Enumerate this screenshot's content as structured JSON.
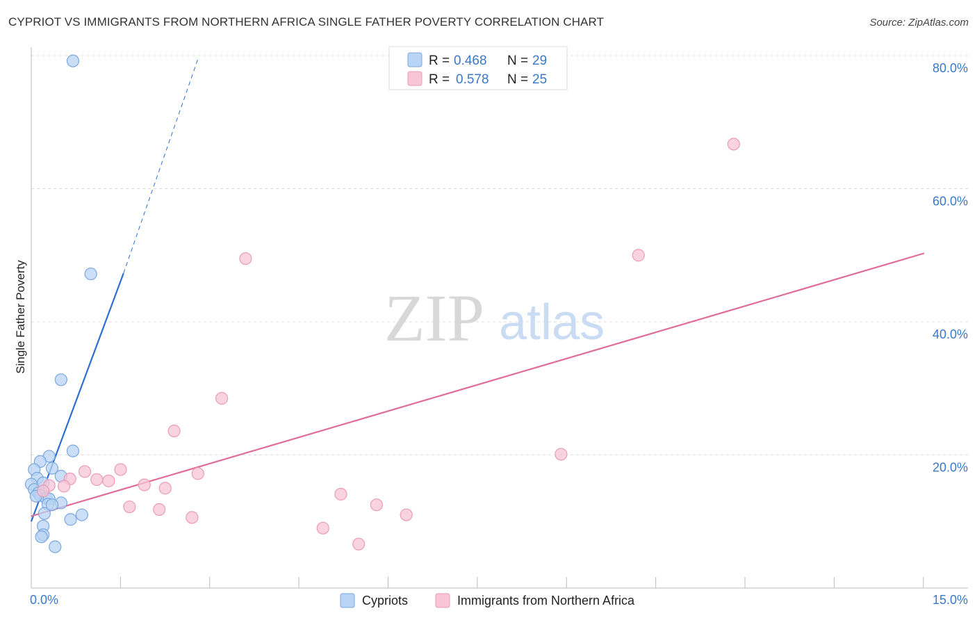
{
  "title": "CYPRIOT VS IMMIGRANTS FROM NORTHERN AFRICA SINGLE FATHER POVERTY CORRELATION CHART",
  "source": "Source: ZipAtlas.com",
  "watermark": {
    "zip": "ZIP",
    "atlas": "atlas"
  },
  "colors": {
    "blue": "#3a78c9",
    "blue_fill": "#b8d4f4",
    "blue_line": "#2d6fd0",
    "pink": "#e0709a",
    "pink_fill": "#f7c5d5",
    "pink_line": "#e06c99"
  },
  "legend": [
    {
      "r_label": "R =",
      "r_value": "0.468",
      "n_label": "N =",
      "n_value": "29"
    },
    {
      "r_label": "R =",
      "r_value": "0.578",
      "n_label": "N =",
      "n_value": "25"
    }
  ],
  "bottom_legend": [
    "Cypriots",
    "Immigrants from Northern Africa"
  ],
  "chart_data": {
    "type": "scatter",
    "title": "CYPRIOT VS IMMIGRANTS FROM NORTHERN AFRICA SINGLE FATHER POVERTY CORRELATION CHART",
    "xlabel": "",
    "ylabel": "Single Father Poverty",
    "xlim": [
      0,
      15
    ],
    "ylim": [
      0,
      82
    ],
    "x_tick_labels": [
      {
        "value": 0,
        "label": "0.0%"
      },
      {
        "value": 15,
        "label": "15.0%"
      }
    ],
    "y_tick_labels": [
      {
        "value": 20,
        "label": "20.0%"
      },
      {
        "value": 40,
        "label": "40.0%"
      },
      {
        "value": 60,
        "label": "60.0%"
      },
      {
        "value": 80,
        "label": "80.0%"
      }
    ],
    "series": [
      {
        "name": "Cypriots",
        "points": [
          [
            0.7,
            79.2
          ],
          [
            1.0,
            47.2
          ],
          [
            0.5,
            31.3
          ],
          [
            0.7,
            20.6
          ],
          [
            0.3,
            19.8
          ],
          [
            0.15,
            19.0
          ],
          [
            0.05,
            17.8
          ],
          [
            0.35,
            18.0
          ],
          [
            0.5,
            16.8
          ],
          [
            0.1,
            16.5
          ],
          [
            0.0,
            15.6
          ],
          [
            0.2,
            15.8
          ],
          [
            0.05,
            14.8
          ],
          [
            0.12,
            14.3
          ],
          [
            0.2,
            14.5
          ],
          [
            0.15,
            13.9
          ],
          [
            0.25,
            13.5
          ],
          [
            0.3,
            13.4
          ],
          [
            0.28,
            12.6
          ],
          [
            0.5,
            12.8
          ],
          [
            0.22,
            11.2
          ],
          [
            0.85,
            11.0
          ],
          [
            0.66,
            10.3
          ],
          [
            0.2,
            9.3
          ],
          [
            0.2,
            8.0
          ],
          [
            0.17,
            7.7
          ],
          [
            0.4,
            6.2
          ],
          [
            0.08,
            13.8
          ],
          [
            0.35,
            12.5
          ]
        ],
        "trend": {
          "x": [
            0.0,
            1.55
          ],
          "y": [
            10.0,
            47.3
          ]
        },
        "trend_dashed": {
          "x": [
            1.55,
            2.8
          ],
          "y": [
            47.3,
            79.5
          ]
        }
      },
      {
        "name": "Immigrants from Northern Africa",
        "points": [
          [
            11.8,
            66.7
          ],
          [
            10.2,
            50.0
          ],
          [
            3.6,
            49.5
          ],
          [
            3.2,
            28.5
          ],
          [
            2.4,
            23.6
          ],
          [
            8.9,
            20.1
          ],
          [
            1.5,
            17.8
          ],
          [
            0.9,
            17.5
          ],
          [
            2.8,
            17.2
          ],
          [
            0.65,
            16.4
          ],
          [
            1.1,
            16.3
          ],
          [
            1.3,
            16.1
          ],
          [
            0.3,
            15.4
          ],
          [
            0.55,
            15.3
          ],
          [
            1.9,
            15.5
          ],
          [
            2.25,
            15.0
          ],
          [
            0.2,
            14.6
          ],
          [
            5.2,
            14.1
          ],
          [
            1.65,
            12.2
          ],
          [
            2.15,
            11.8
          ],
          [
            5.8,
            12.5
          ],
          [
            2.7,
            10.6
          ],
          [
            6.3,
            11.0
          ],
          [
            4.9,
            9.0
          ],
          [
            5.5,
            6.6
          ]
        ],
        "trend": {
          "x": [
            0.0,
            15.0
          ],
          "y": [
            10.8,
            50.3
          ]
        }
      }
    ]
  }
}
